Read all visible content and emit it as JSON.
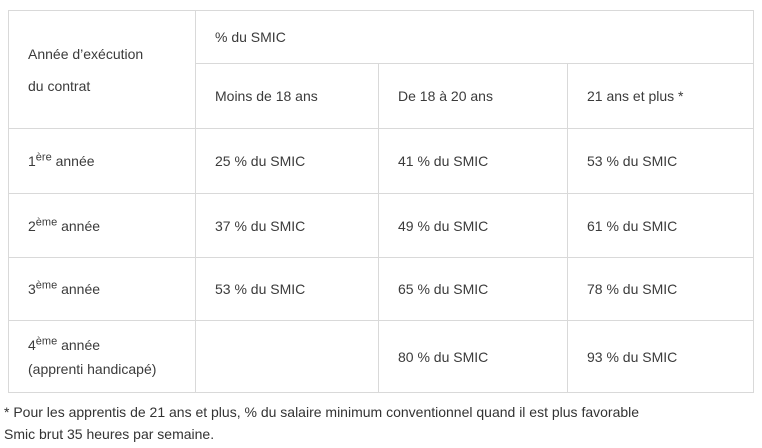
{
  "table": {
    "corner_header": {
      "line1": "Année d’exécution",
      "line2": "du contrat"
    },
    "group_header": "% du SMIC",
    "col_headers": [
      "Moins de 18 ans",
      "De 18 à 20 ans",
      "21 ans et plus *"
    ],
    "rows": [
      {
        "num": "1",
        "ordinal": "ère",
        "label": "année",
        "label2": "",
        "values": [
          "25 % du SMIC",
          "41 % du SMIC",
          "53 % du SMIC"
        ]
      },
      {
        "num": "2",
        "ordinal": "ème",
        "label": "année",
        "label2": "",
        "values": [
          "37 % du SMIC",
          "49 % du SMIC",
          "61 % du SMIC"
        ]
      },
      {
        "num": "3",
        "ordinal": "ème",
        "label": "année",
        "label2": "",
        "values": [
          "53 % du SMIC",
          "65 % du SMIC",
          "78 % du SMIC"
        ]
      },
      {
        "num": "4",
        "ordinal": "ème",
        "label": "année",
        "label2": "(apprenti handicapé)",
        "values": [
          "",
          "80 % du SMIC",
          "93 % du SMIC"
        ]
      }
    ]
  },
  "footnote": {
    "line1": "* Pour les apprentis de 21 ans et plus, % du salaire minimum conventionnel quand il est plus favorable",
    "line2": "Smic brut 35 heures par semaine."
  },
  "colors": {
    "border": "#d9d9d9",
    "text": "#3b3b3b",
    "background": "#ffffff"
  }
}
